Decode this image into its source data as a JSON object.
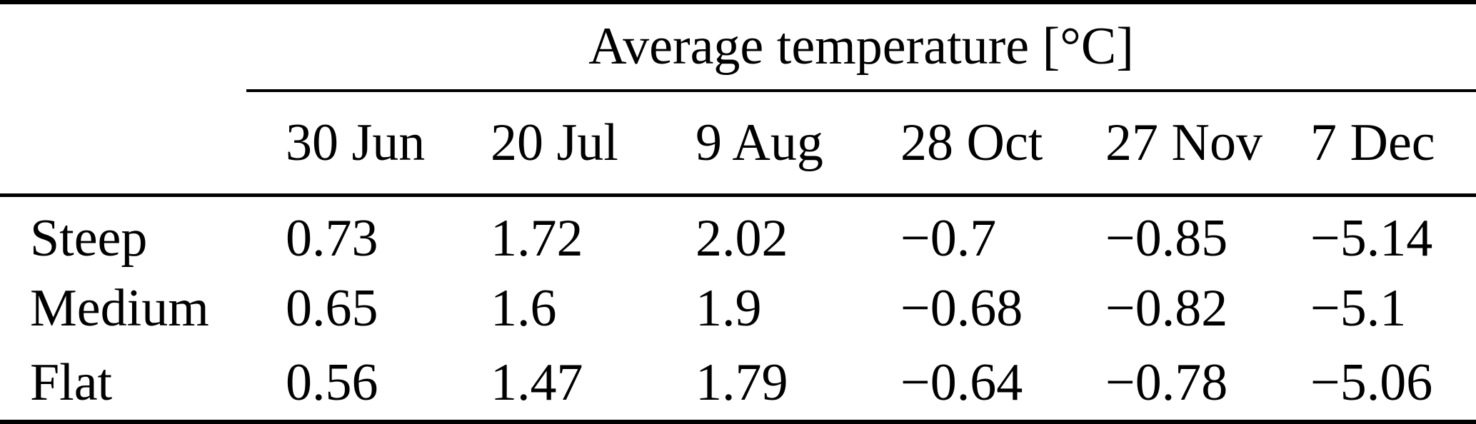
{
  "page": {
    "background_color": "#ffffff",
    "text_color": "#000000"
  },
  "table": {
    "title": "Average temperature [°C]",
    "column_headers": [
      "30 Jun",
      "20 Jul",
      "9 Aug",
      "28 Oct",
      "27 Nov",
      "7 Dec"
    ],
    "rows": [
      {
        "label": "Steep",
        "values": [
          "0.73",
          "1.72",
          "2.02",
          "−0.7",
          "−0.85",
          "−5.14"
        ]
      },
      {
        "label": "Medium",
        "values": [
          "0.65",
          "1.6",
          "1.9",
          "−0.68",
          "−0.82",
          "−5.1"
        ]
      },
      {
        "label": "Flat",
        "values": [
          "0.56",
          "1.47",
          "1.79",
          "−0.64",
          "−0.78",
          "−5.06"
        ]
      }
    ]
  },
  "chart_data": {
    "type": "table",
    "title": "Average temperature [°C]",
    "categories": [
      "30 Jun",
      "20 Jul",
      "9 Aug",
      "28 Oct",
      "27 Nov",
      "7 Dec"
    ],
    "series": [
      {
        "name": "Steep",
        "values": [
          0.73,
          1.72,
          2.02,
          -0.7,
          -0.85,
          -5.14
        ]
      },
      {
        "name": "Medium",
        "values": [
          0.65,
          1.6,
          1.9,
          -0.68,
          -0.82,
          -5.1
        ]
      },
      {
        "name": "Flat",
        "values": [
          0.56,
          1.47,
          1.79,
          -0.64,
          -0.78,
          -5.06
        ]
      }
    ]
  }
}
